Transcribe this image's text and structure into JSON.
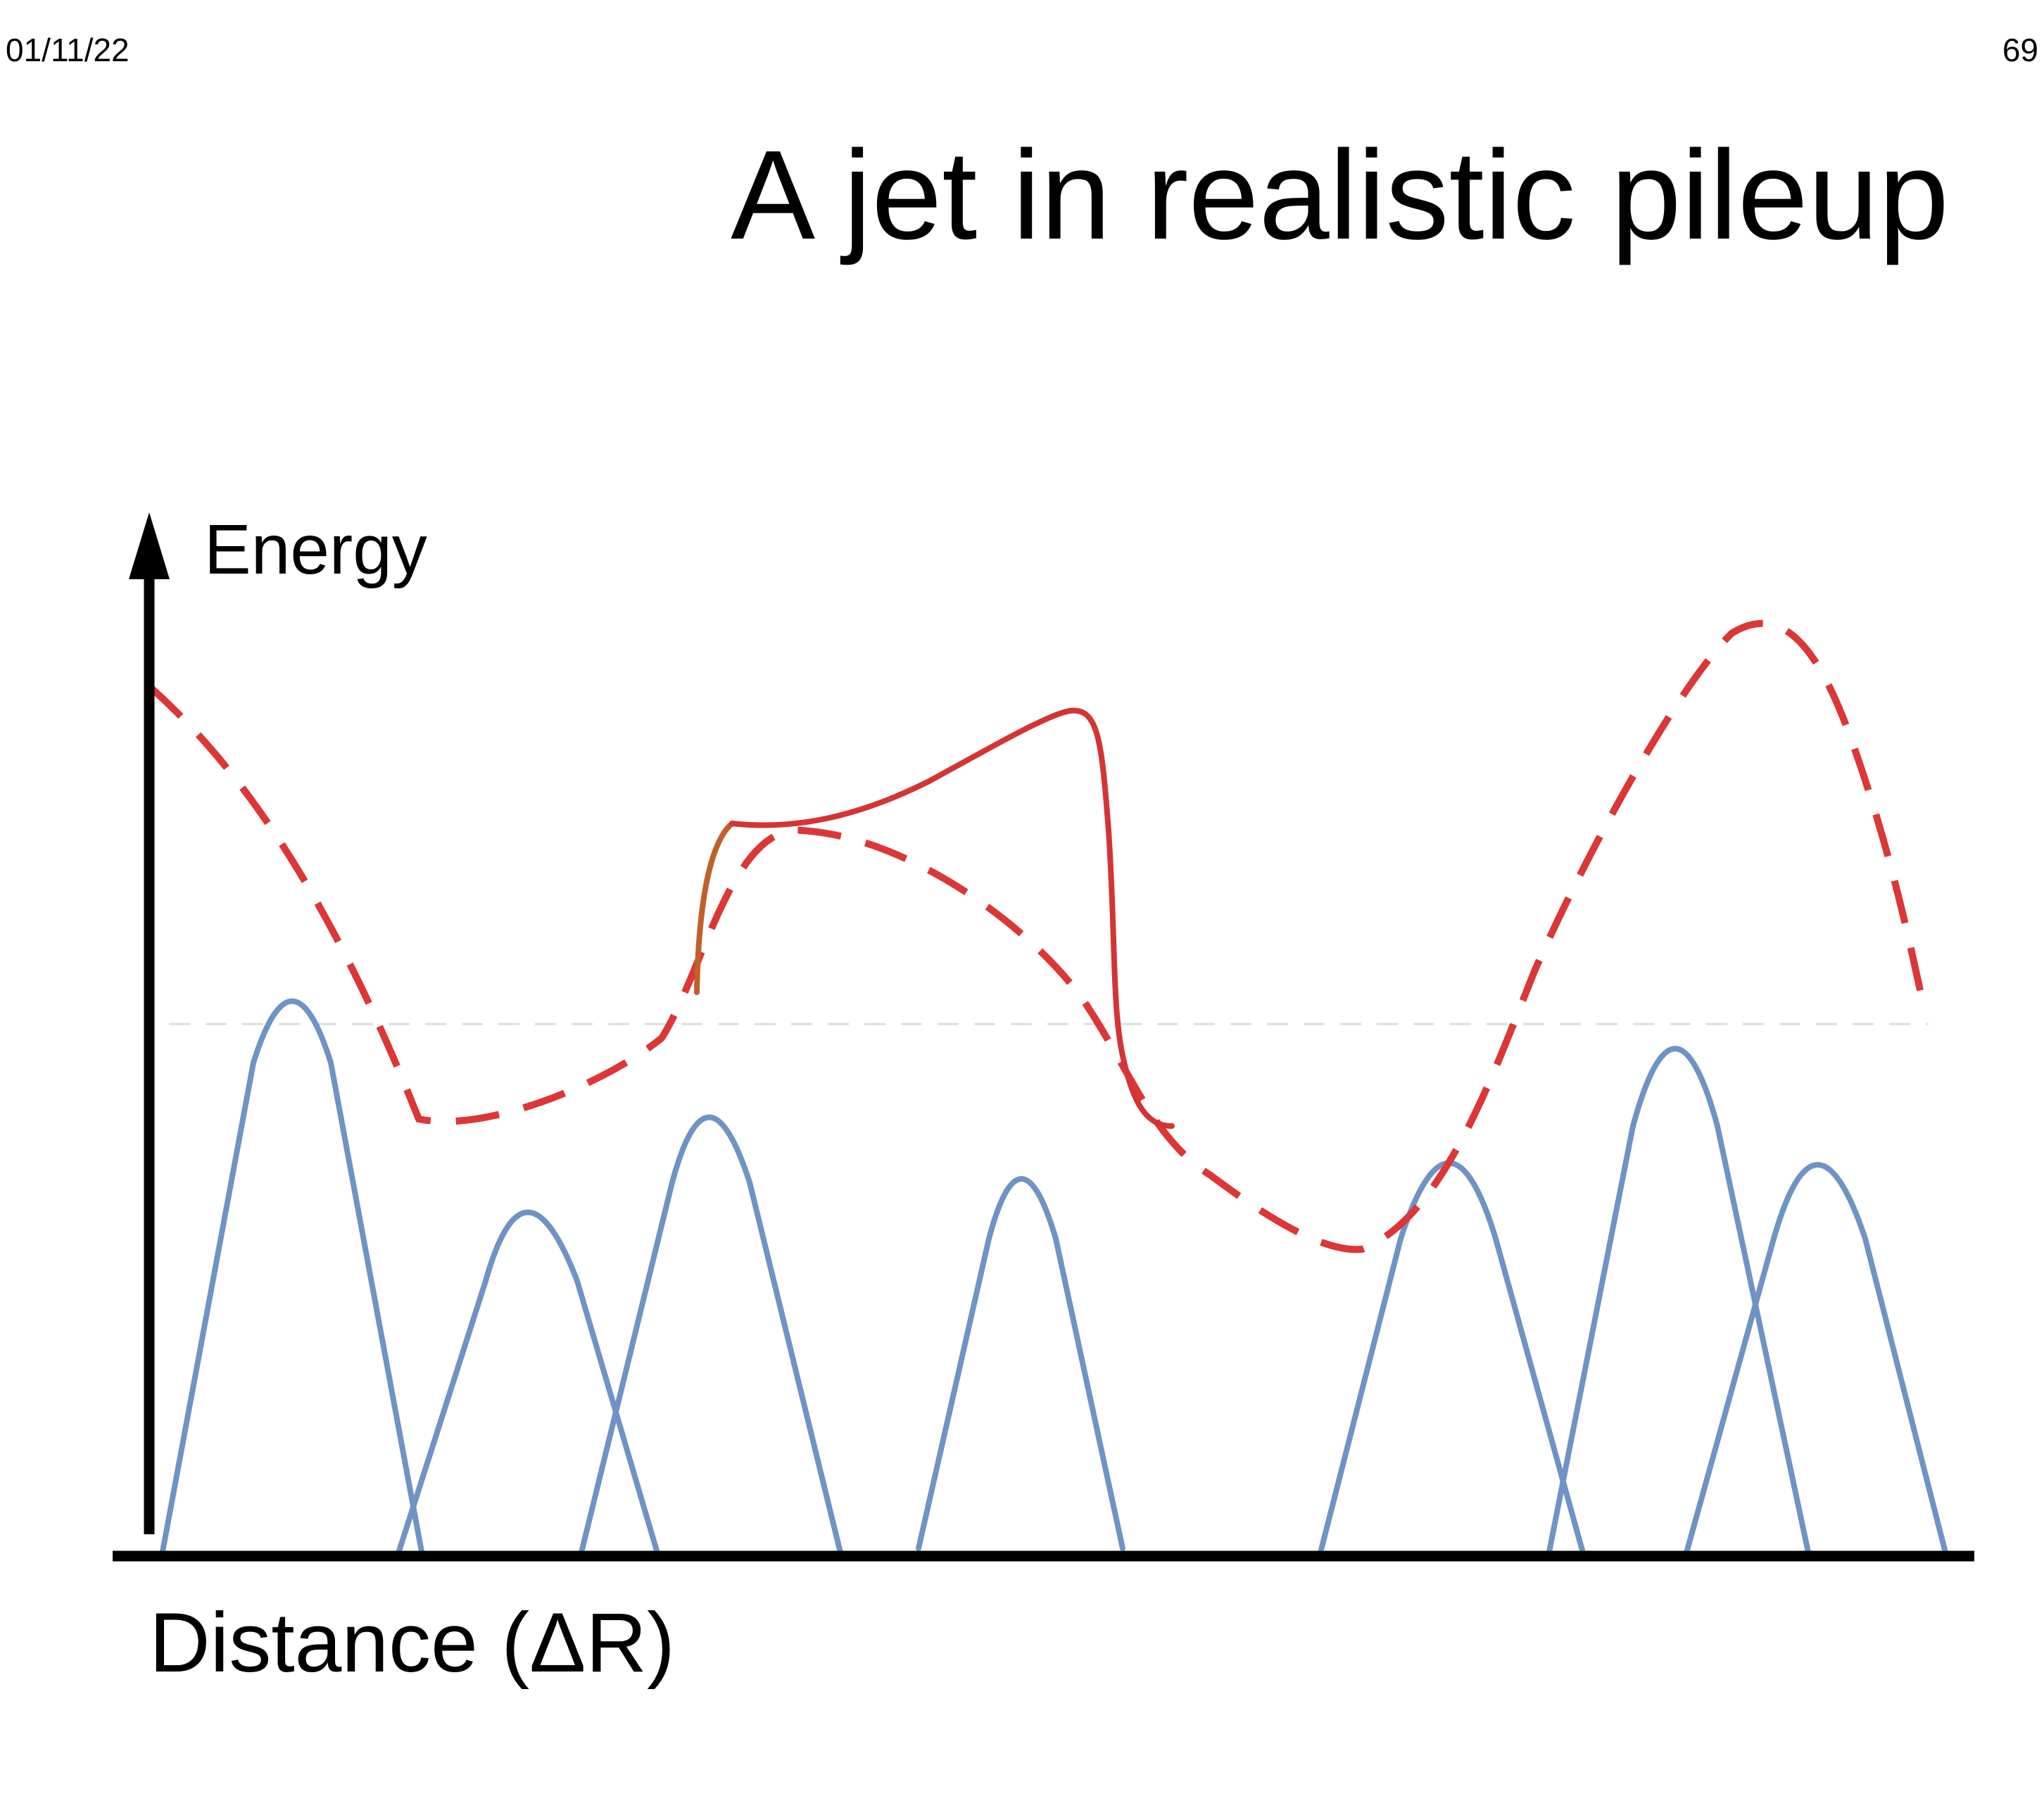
{
  "slide": {
    "date": "01/11/22",
    "page_number": "69",
    "title": "A jet in realistic pileup"
  },
  "diagram": {
    "y_axis_label": "Energy",
    "x_axis_label": "Distance (ΔR)",
    "colors": {
      "axes": "#000000",
      "pileup_peaks": "#6e93c4",
      "total_energy_dashed": "#dc3636",
      "jet_solid": "#d43434",
      "jet_leading_edge": "#c0602a",
      "threshold_line": "#dddddd"
    },
    "icons": [
      "arrow-up-icon"
    ]
  }
}
